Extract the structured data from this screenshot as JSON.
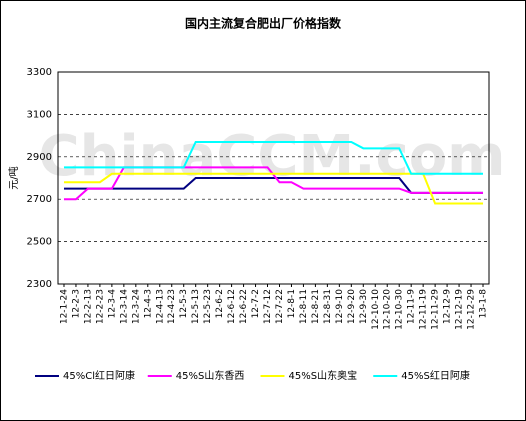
{
  "chart_data": {
    "type": "line",
    "title": "国内主流复合肥出厂价格指数",
    "y_label": "元/吨",
    "watermark": "ChinaCCM.com",
    "categories": [
      "12-1-24",
      "12-2-3",
      "12-2-13",
      "12-2-23",
      "12-3-4",
      "12-3-14",
      "12-3-24",
      "12-4-3",
      "12-4-13",
      "12-4-23",
      "12-5-3",
      "12-5-13",
      "12-5-23",
      "12-6-2",
      "12-6-12",
      "12-6-22",
      "12-7-2",
      "12-7-12",
      "12-7-22",
      "12-8-1",
      "12-8-11",
      "12-8-21",
      "12-8-31",
      "12-9-10",
      "12-9-20",
      "12-9-30",
      "12-10-10",
      "12-10-20",
      "12-10-30",
      "12-11-9",
      "12-11-19",
      "12-11-29",
      "12-12-9",
      "12-12-19",
      "12-12-29",
      "13-1-8"
    ],
    "series": [
      {
        "name": "45%Cl红日阿康",
        "color": "#000080",
        "values": [
          2750,
          2750,
          2750,
          2750,
          2750,
          2750,
          2750,
          2750,
          2750,
          2750,
          2750,
          2800,
          2800,
          2800,
          2800,
          2800,
          2800,
          2800,
          2800,
          2800,
          2800,
          2800,
          2800,
          2800,
          2800,
          2800,
          2800,
          2800,
          2800,
          2730,
          2730,
          2730,
          2730,
          2730,
          2730,
          2730
        ]
      },
      {
        "name": "45%S山东香西",
        "color": "#ff00ff",
        "values": [
          2700,
          2700,
          2750,
          2750,
          2750,
          2850,
          2850,
          2850,
          2850,
          2850,
          2850,
          2850,
          2850,
          2850,
          2850,
          2850,
          2850,
          2850,
          2780,
          2780,
          2750,
          2750,
          2750,
          2750,
          2750,
          2750,
          2750,
          2750,
          2750,
          2730,
          2730,
          2730,
          2730,
          2730,
          2730,
          2730
        ]
      },
      {
        "name": "45%S山东奥宝",
        "color": "#ffff00",
        "values": [
          2780,
          2780,
          2780,
          2780,
          2820,
          2820,
          2820,
          2820,
          2820,
          2820,
          2820,
          2820,
          2820,
          2820,
          2820,
          2820,
          2820,
          2820,
          2820,
          2820,
          2820,
          2820,
          2820,
          2820,
          2820,
          2820,
          2820,
          2820,
          2820,
          2820,
          2820,
          2680,
          2680,
          2680,
          2680,
          2680
        ]
      },
      {
        "name": "45%S红日阿康",
        "color": "#00ffff",
        "values": [
          2850,
          2850,
          2850,
          2850,
          2850,
          2850,
          2850,
          2850,
          2850,
          2850,
          2850,
          2970,
          2970,
          2970,
          2970,
          2970,
          2970,
          2970,
          2970,
          2970,
          2970,
          2970,
          2970,
          2970,
          2970,
          2940,
          2940,
          2940,
          2940,
          2820,
          2820,
          2820,
          2820,
          2820,
          2820,
          2820
        ]
      }
    ],
    "ylim": [
      2300,
      3300
    ],
    "yticks": [
      2300,
      2500,
      2700,
      2900,
      3100,
      3300
    ],
    "grid": true,
    "legend": "bottom"
  }
}
